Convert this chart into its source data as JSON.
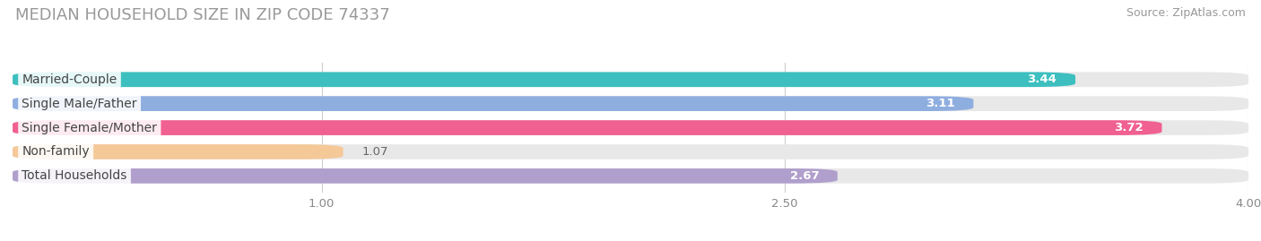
{
  "title": "MEDIAN HOUSEHOLD SIZE IN ZIP CODE 74337",
  "source": "Source: ZipAtlas.com",
  "categories": [
    "Married-Couple",
    "Single Male/Father",
    "Single Female/Mother",
    "Non-family",
    "Total Households"
  ],
  "values": [
    3.44,
    3.11,
    3.72,
    1.07,
    2.67
  ],
  "bar_colors": [
    "#3dbfbf",
    "#8faee0",
    "#f06090",
    "#f5c898",
    "#b09fcc"
  ],
  "track_color": "#e8e8e8",
  "xlim": [
    0.0,
    4.0
  ],
  "xticks": [
    1.0,
    2.5,
    4.0
  ],
  "title_fontsize": 13,
  "source_fontsize": 9,
  "label_fontsize": 10,
  "value_fontsize": 9.5,
  "bar_height": 0.62,
  "background_color": "#ffffff",
  "label_color": "#444444",
  "value_color_inside": "#ffffff",
  "value_color_outside": "#666666"
}
